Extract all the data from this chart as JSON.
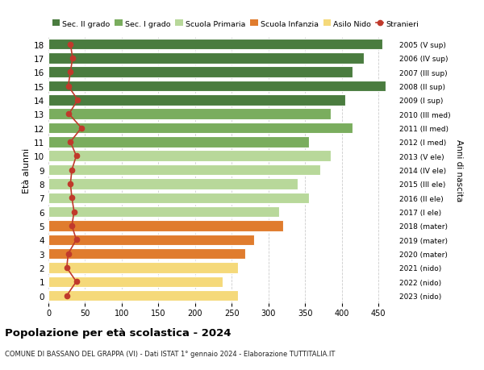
{
  "ages": [
    18,
    17,
    16,
    15,
    14,
    13,
    12,
    11,
    10,
    9,
    8,
    7,
    6,
    5,
    4,
    3,
    2,
    1,
    0
  ],
  "right_labels": [
    "2005 (V sup)",
    "2006 (IV sup)",
    "2007 (III sup)",
    "2008 (II sup)",
    "2009 (I sup)",
    "2010 (III med)",
    "2011 (II med)",
    "2012 (I med)",
    "2013 (V ele)",
    "2014 (IV ele)",
    "2015 (III ele)",
    "2016 (II ele)",
    "2017 (I ele)",
    "2018 (mater)",
    "2019 (mater)",
    "2020 (mater)",
    "2021 (nido)",
    "2022 (nido)",
    "2023 (nido)"
  ],
  "bar_values": [
    455,
    430,
    415,
    460,
    405,
    385,
    415,
    355,
    385,
    370,
    340,
    355,
    315,
    320,
    280,
    268,
    258,
    238,
    258
  ],
  "bar_colors": [
    "#4a7c3f",
    "#4a7c3f",
    "#4a7c3f",
    "#4a7c3f",
    "#4a7c3f",
    "#7aad5e",
    "#7aad5e",
    "#7aad5e",
    "#b8d89a",
    "#b8d89a",
    "#b8d89a",
    "#b8d89a",
    "#b8d89a",
    "#e07c2e",
    "#e07c2e",
    "#e07c2e",
    "#f5d97a",
    "#f5d97a",
    "#f5d97a"
  ],
  "stranieri_values": [
    30,
    33,
    30,
    27,
    40,
    28,
    45,
    30,
    38,
    32,
    30,
    32,
    35,
    32,
    38,
    27,
    25,
    38,
    25
  ],
  "legend_labels": [
    "Sec. II grado",
    "Sec. I grado",
    "Scuola Primaria",
    "Scuola Infanzia",
    "Asilo Nido",
    "Stranieri"
  ],
  "legend_colors": [
    "#4a7c3f",
    "#7aad5e",
    "#b8d89a",
    "#e07c2e",
    "#f5d97a",
    "#c0392b"
  ],
  "xlabel_vals": [
    0,
    50,
    100,
    150,
    200,
    250,
    300,
    350,
    400,
    450
  ],
  "title": "Popolazione per età scolastica - 2024",
  "subtitle": "COMUNE DI BASSANO DEL GRAPPA (VI) - Dati ISTAT 1° gennaio 2024 - Elaborazione TUTTITALIA.IT",
  "ylabel_left": "Età alunni",
  "ylabel_right": "Anni di nascita",
  "bar_height": 0.78,
  "background_color": "#ffffff",
  "grid_color": "#cccccc",
  "stranieri_color": "#c0392b",
  "xlim": [
    0,
    475
  ],
  "ylim_low": -0.55,
  "ylim_high": 18.55
}
